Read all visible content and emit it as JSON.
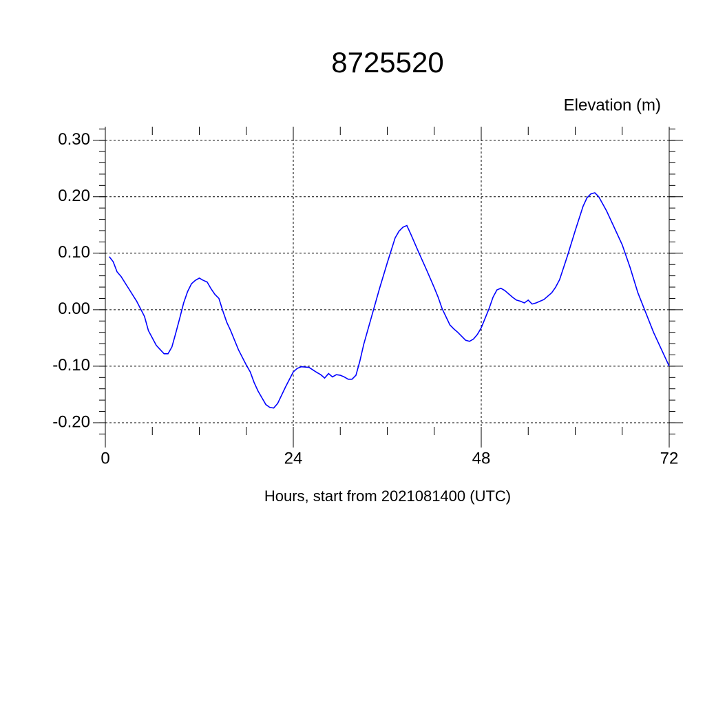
{
  "chart_data": {
    "type": "line",
    "title": "8725520",
    "y_label": "Elevation (m)",
    "x_label": "Hours, start from 2021081400 (UTC)",
    "x": [
      0.5,
      1,
      1.5,
      2,
      3,
      4,
      5,
      5.5,
      6.5,
      7.5,
      8,
      8.5,
      9,
      9.5,
      10,
      10.5,
      11,
      11.5,
      12,
      12.5,
      13,
      13.5,
      14,
      14.5,
      15,
      15.5,
      16,
      17,
      18,
      18.5,
      19,
      19.5,
      20,
      20.5,
      21,
      21.5,
      22,
      23,
      24,
      24.5,
      25,
      26,
      27,
      27.5,
      28,
      28.5,
      29,
      29.5,
      30,
      30.5,
      31,
      31.5,
      32,
      32.5,
      33,
      34,
      35,
      36,
      37,
      37.5,
      38,
      38.5,
      39,
      40,
      41,
      42,
      42.5,
      43,
      44,
      44.5,
      45,
      46,
      46.5,
      47,
      47.5,
      48,
      49,
      49.5,
      50,
      50.5,
      51,
      52,
      52.5,
      53,
      53.5,
      54,
      54.5,
      55,
      56,
      57,
      57.5,
      58,
      59,
      60,
      61,
      61.5,
      62,
      62.5,
      63,
      64,
      65,
      66,
      67,
      68,
      69,
      70,
      71,
      72
    ],
    "series": [
      {
        "name": "Elevation",
        "color": "#0000ff",
        "values": [
          0.094,
          0.085,
          0.067,
          0.059,
          0.037,
          0.015,
          -0.012,
          -0.037,
          -0.063,
          -0.078,
          -0.078,
          -0.066,
          -0.041,
          -0.015,
          0.012,
          0.032,
          0.046,
          0.052,
          0.056,
          0.052,
          0.049,
          0.037,
          0.027,
          0.02,
          -0.002,
          -0.022,
          -0.037,
          -0.071,
          -0.098,
          -0.11,
          -0.129,
          -0.144,
          -0.156,
          -0.168,
          -0.173,
          -0.174,
          -0.166,
          -0.137,
          -0.11,
          -0.104,
          -0.101,
          -0.102,
          -0.111,
          -0.115,
          -0.121,
          -0.113,
          -0.119,
          -0.115,
          -0.116,
          -0.119,
          -0.123,
          -0.123,
          -0.116,
          -0.091,
          -0.061,
          -0.012,
          0.037,
          0.083,
          0.127,
          0.139,
          0.146,
          0.149,
          0.134,
          0.102,
          0.071,
          0.039,
          0.022,
          0.002,
          -0.027,
          -0.034,
          -0.04,
          -0.054,
          -0.056,
          -0.052,
          -0.044,
          -0.032,
          0.002,
          0.022,
          0.035,
          0.038,
          0.034,
          0.022,
          0.017,
          0.015,
          0.012,
          0.017,
          0.01,
          0.012,
          0.018,
          0.03,
          0.04,
          0.053,
          0.095,
          0.14,
          0.183,
          0.198,
          0.205,
          0.207,
          0.2,
          0.175,
          0.145,
          0.115,
          0.075,
          0.03,
          -0.005,
          -0.04,
          -0.07,
          -0.1
        ]
      }
    ],
    "xlim": [
      0,
      72
    ],
    "xticks": [
      0,
      24,
      48,
      72
    ],
    "ylim": [
      -0.222,
      0.324
    ],
    "yticks": [
      {
        "value": -0.2,
        "label": "-0.20"
      },
      {
        "value": -0.1,
        "label": "-0.10"
      },
      {
        "value": 0,
        "label": "0.00"
      },
      {
        "value": 0.1,
        "label": "0.10"
      },
      {
        "value": 0.2,
        "label": "0.20"
      },
      {
        "value": 0.3,
        "label": "0.30"
      }
    ],
    "grid": true
  }
}
